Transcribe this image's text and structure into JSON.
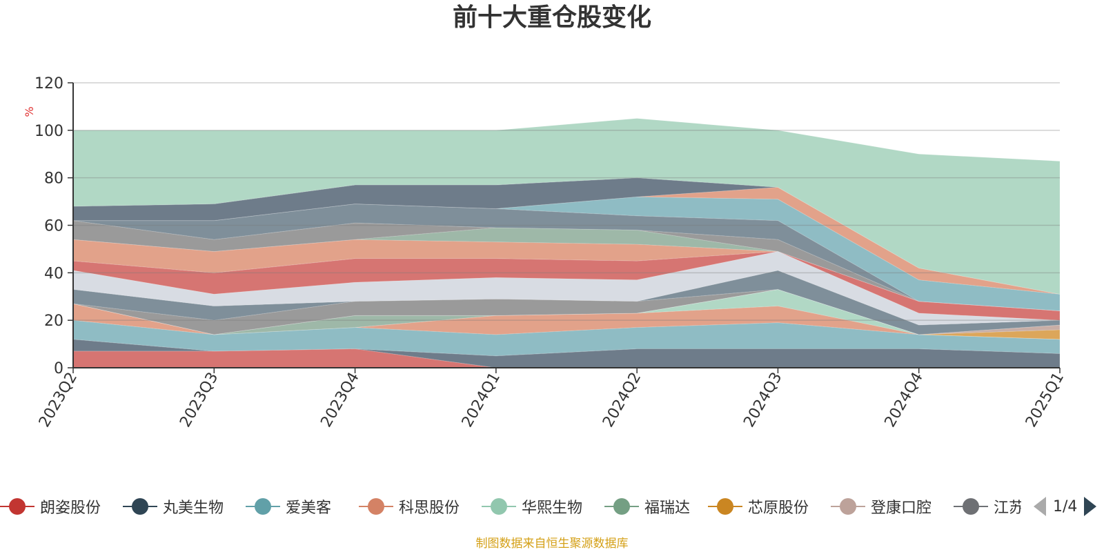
{
  "chart_data": {
    "type": "area",
    "stacked": true,
    "title": "前十大重仓股变化",
    "ylabel": "%",
    "ylim": [
      0,
      120
    ],
    "yticks": [
      0,
      20,
      40,
      60,
      80,
      100,
      120
    ],
    "grid": true,
    "categories": [
      "2023Q2",
      "2023Q3",
      "2023Q4",
      "2024Q1",
      "2024Q2",
      "2024Q3",
      "2024Q4",
      "2025Q1"
    ],
    "series": [
      {
        "name": "朗姿股份",
        "color": "#d67572",
        "values": [
          7,
          7,
          8,
          0,
          0,
          0,
          0,
          0
        ]
      },
      {
        "name": "丸美生物",
        "color": "#6e7c8a",
        "values": [
          5,
          0,
          0,
          5,
          8,
          8,
          8,
          6
        ]
      },
      {
        "name": "爱美客",
        "color": "#8fbcc4",
        "values": [
          8,
          7,
          9,
          9,
          9,
          11,
          6,
          6
        ]
      },
      {
        "name": "科思股份",
        "color": "#e2a28a",
        "values": [
          7,
          0,
          0,
          8,
          6,
          7,
          0,
          0
        ]
      },
      {
        "name": "华熙生物",
        "color": "#b1d8c5",
        "values": [
          0,
          0,
          0,
          0,
          0,
          7,
          0,
          0
        ]
      },
      {
        "name": "福瑞达",
        "color": "#9eb8a8",
        "values": [
          0,
          0,
          5,
          0,
          0,
          0,
          0,
          0
        ]
      },
      {
        "name": "芯原股份",
        "color": "#dca65a",
        "values": [
          0,
          0,
          0,
          0,
          0,
          0,
          0,
          4
        ]
      },
      {
        "name": "登康口腔",
        "color": "#c8aea6",
        "values": [
          0,
          0,
          0,
          0,
          0,
          0,
          0,
          2
        ]
      },
      {
        "name": "江苏吴中",
        "color": "#9a9a9a",
        "values": [
          0,
          6,
          6,
          7,
          5,
          0,
          0,
          0
        ]
      },
      {
        "name": "",
        "color": "#7f8f9a",
        "values": [
          6,
          6,
          0,
          0,
          0,
          8,
          4,
          2
        ]
      },
      {
        "name": "",
        "color": "#d8dce3",
        "values": [
          8,
          5,
          8,
          9,
          9,
          8,
          5,
          0
        ]
      },
      {
        "name": "",
        "color": "#d67572",
        "values": [
          4,
          9,
          10,
          8,
          8,
          0,
          5,
          4
        ]
      },
      {
        "name": "",
        "color": "#e2a28a",
        "values": [
          9,
          9,
          8,
          7,
          7,
          0,
          0,
          0
        ]
      },
      {
        "name": "",
        "color": "#9eb8a8",
        "values": [
          0,
          0,
          0,
          6,
          6,
          0,
          0,
          0
        ]
      },
      {
        "name": "",
        "color": "#9a9a9a",
        "values": [
          8,
          5,
          7,
          0,
          0,
          5,
          0,
          0
        ]
      },
      {
        "name": "",
        "color": "#7f8f9a",
        "values": [
          0,
          8,
          8,
          8,
          6,
          8,
          0,
          0
        ]
      },
      {
        "name": "",
        "color": "#8fbcc4",
        "values": [
          0,
          0,
          0,
          0,
          8,
          9,
          9,
          7
        ]
      },
      {
        "name": "",
        "color": "#e2a28a",
        "values": [
          0,
          0,
          0,
          0,
          0,
          5,
          5,
          0
        ]
      },
      {
        "name": "",
        "color": "#6e7c8a",
        "values": [
          6,
          7,
          8,
          10,
          8,
          0,
          0,
          0
        ]
      },
      {
        "name": "",
        "color": "#b1d8c5",
        "values": [
          32,
          31,
          23,
          23,
          25,
          24,
          48,
          56
        ]
      }
    ]
  },
  "legend": {
    "items": [
      {
        "label": "朗姿股份",
        "color": "#c23531"
      },
      {
        "label": "丸美生物",
        "color": "#2f4554"
      },
      {
        "label": "爱美客",
        "color": "#61a0a8"
      },
      {
        "label": "科思股份",
        "color": "#d48265"
      },
      {
        "label": "华熙生物",
        "color": "#91c7ae"
      },
      {
        "label": "福瑞达",
        "color": "#749f83"
      },
      {
        "label": "芯原股份",
        "color": "#ca8622"
      },
      {
        "label": "登康口腔",
        "color": "#bda29a"
      },
      {
        "label": "江苏吴中",
        "color": "#6e7074"
      }
    ],
    "page": "1/4"
  },
  "footer": "制图数据来自恒生聚源数据库"
}
